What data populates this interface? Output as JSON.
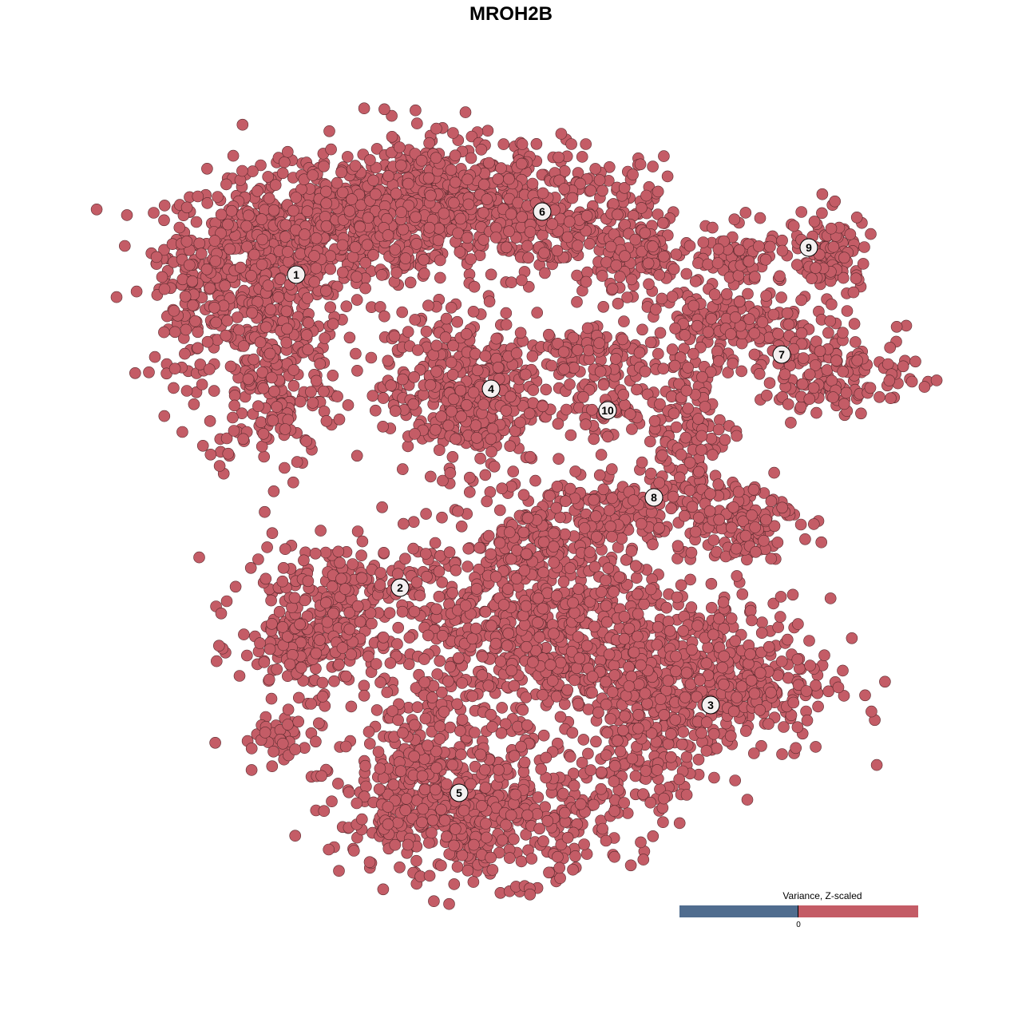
{
  "chart_data": {
    "type": "scatter",
    "title": "MROH2B",
    "xlabel": "",
    "ylabel": "",
    "xlim": [
      -50,
      50
    ],
    "ylim": [
      -50,
      50
    ],
    "grid": false,
    "point_color": "#c45c66",
    "point_stroke": "#5a2a2e",
    "clusters": [
      {
        "label": "1",
        "center": [
          -26.9,
          29.6
        ],
        "blobs": [
          [
            -31,
            32,
            6,
            5,
            500
          ],
          [
            -30,
            17,
            4.5,
            6,
            250
          ],
          [
            -20,
            36,
            5,
            4,
            300
          ],
          [
            -40,
            26,
            2.5,
            5,
            80
          ]
        ]
      },
      {
        "label": "2",
        "center": [
          -13.9,
          -9.6
        ],
        "blobs": [
          [
            -25,
            -17,
            4.5,
            3,
            200
          ],
          [
            -21,
            -9,
            6,
            2.5,
            150
          ],
          [
            -30,
            -29,
            3,
            2,
            40
          ]
        ]
      },
      {
        "label": "3",
        "center": [
          25.0,
          -24.3
        ],
        "blobs": [
          [
            26,
            -21,
            7,
            5,
            400
          ],
          [
            17,
            -28,
            4,
            5,
            150
          ]
        ]
      },
      {
        "label": "4",
        "center": [
          -2.5,
          15.3
        ],
        "blobs": [
          [
            -6,
            15,
            5,
            5,
            400
          ]
        ]
      },
      {
        "label": "5",
        "center": [
          -6.5,
          -35.3
        ],
        "blobs": [
          [
            4,
            -15,
            10,
            7,
            900
          ],
          [
            -4,
            -38,
            9,
            4,
            500
          ],
          [
            -11,
            -31,
            4,
            5,
            150
          ]
        ]
      },
      {
        "label": "6",
        "center": [
          3.9,
          37.5
        ],
        "blobs": [
          [
            -8,
            39,
            7,
            4,
            500
          ],
          [
            8,
            36,
            6,
            4,
            250
          ],
          [
            16,
            32,
            3,
            3,
            80
          ]
        ]
      },
      {
        "label": "7",
        "center": [
          33.9,
          19.6
        ],
        "blobs": [
          [
            28,
            23,
            6,
            2.5,
            180
          ],
          [
            41,
            17,
            5,
            2.5,
            150
          ]
        ]
      },
      {
        "label": "8",
        "center": [
          17.9,
          1.7
        ],
        "blobs": [
          [
            22,
            10,
            3,
            5,
            150
          ],
          [
            28,
            -1,
            4,
            2.5,
            150
          ],
          [
            12,
            0,
            5,
            2,
            120
          ],
          [
            5,
            -4,
            3,
            3,
            80
          ]
        ]
      },
      {
        "label": "9",
        "center": [
          37.3,
          33.0
        ],
        "blobs": [
          [
            29,
            32,
            5,
            2,
            100
          ],
          [
            40,
            32,
            2.5,
            3,
            80
          ]
        ]
      },
      {
        "label": "10",
        "center": [
          12.1,
          12.6
        ],
        "blobs": [
          [
            12,
            16,
            3,
            4,
            100
          ],
          [
            8,
            20,
            4,
            1.5,
            60
          ]
        ]
      }
    ],
    "legend": {
      "title": "Variance, Z-scaled",
      "tick_label": "0",
      "low_color": "#506d8f",
      "high_color": "#c45c66",
      "placement": "bottom-right"
    }
  }
}
